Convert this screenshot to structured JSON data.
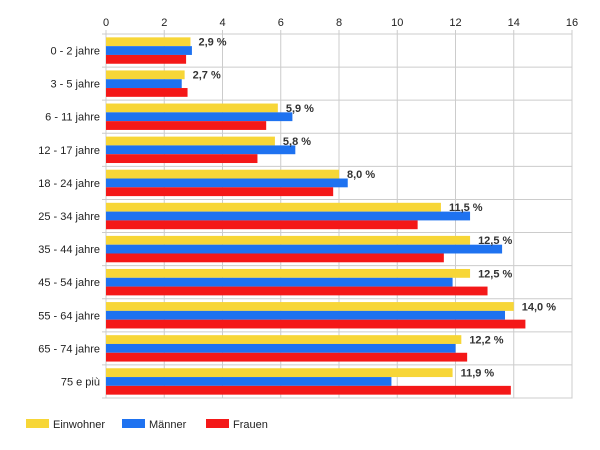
{
  "chart_data": {
    "type": "bar",
    "orientation": "horizontal",
    "title": "",
    "xlabel": "",
    "ylabel": "",
    "xlim": [
      0,
      16
    ],
    "x_ticks": [
      0,
      2,
      4,
      6,
      8,
      10,
      12,
      14,
      16
    ],
    "grid": true,
    "legend_position": "bottom-left",
    "categories": [
      "0 - 2 jahre",
      "3 - 5 jahre",
      "6 - 11 jahre",
      "12 - 17 jahre",
      "18 - 24 jahre",
      "25 - 34 jahre",
      "35 - 44 jahre",
      "45 - 54 jahre",
      "55 - 64 jahre",
      "65 - 74 jahre",
      "75 e più"
    ],
    "series": [
      {
        "name": "Einwohner",
        "color": "#f7d637",
        "values": [
          2.9,
          2.7,
          5.9,
          5.8,
          8.0,
          11.5,
          12.5,
          12.5,
          14.0,
          12.2,
          11.9
        ]
      },
      {
        "name": "Männer",
        "color": "#1e72f0",
        "values": [
          2.95,
          2.6,
          6.4,
          6.5,
          8.3,
          12.5,
          13.6,
          11.9,
          13.7,
          12.0,
          9.8
        ]
      },
      {
        "name": "Frauen",
        "color": "#f41818",
        "values": [
          2.75,
          2.8,
          5.5,
          5.2,
          7.8,
          10.7,
          11.6,
          13.1,
          14.4,
          12.4,
          13.9
        ]
      }
    ],
    "data_labels": [
      "2,9 %",
      "2,7 %",
      "5,9 %",
      "5,8 %",
      "8,0 %",
      "11,5 %",
      "12,5 %",
      "12,5 %",
      "14,0 %",
      "12,2 %",
      "11,9 %"
    ]
  }
}
